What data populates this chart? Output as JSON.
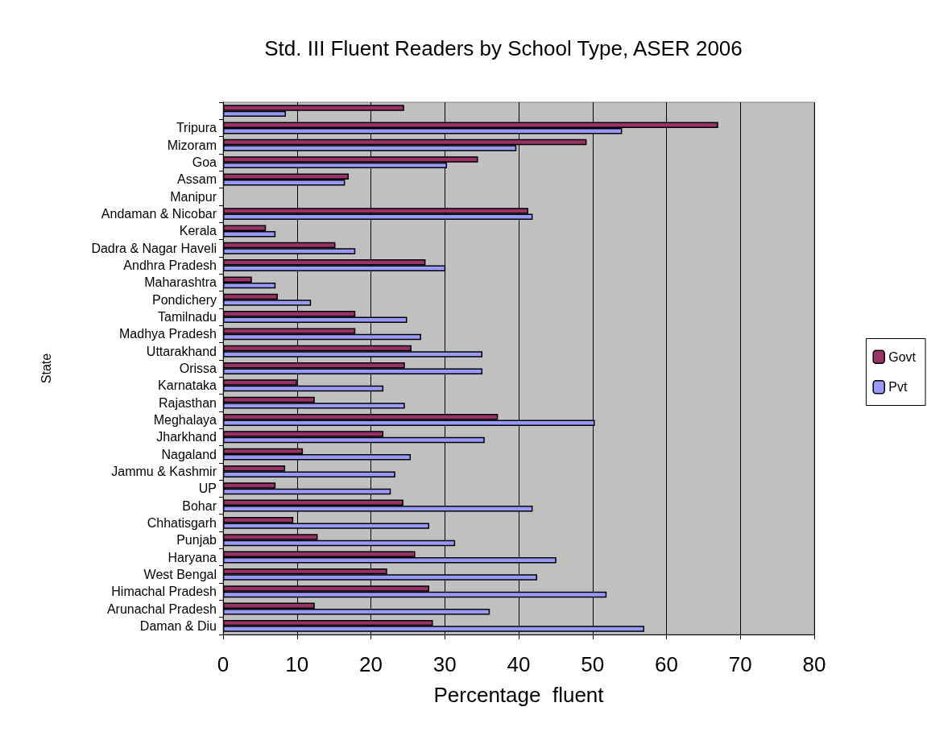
{
  "chart_data": {
    "type": "bar",
    "orientation": "horizontal",
    "title": "Std. III Fluent Readers by School Type, ASER 2006",
    "xlabel": "Percentage  fluent",
    "ylabel": "State",
    "categories": [
      null,
      "Tripura",
      "Mizoram",
      "Goa",
      "Assam",
      "Manipur",
      "Andaman & Nicobar",
      "Kerala",
      "Dadra & Nagar Haveli",
      "Andhra Pradesh",
      "Maharashtra",
      "Pondichery",
      "Tamilnadu",
      "Madhya Pradesh",
      "Uttarakhand",
      "Orissa",
      "Karnataka",
      "Rajasthan",
      "Meghalaya",
      "Jharkhand",
      "Nagaland",
      "Jammu & Kashmir",
      "UP",
      "Bohar",
      "Chhatisgarh",
      "Punjab",
      "Haryana",
      "West Bengal",
      "Himachal Pradesh",
      "Arunachal Pradesh",
      "Daman & Diu"
    ],
    "series": [
      {
        "name": "Govt",
        "color": "#993366",
        "values": [
          24.5,
          67,
          49.2,
          34.5,
          17,
          null,
          41.3,
          5.8,
          15.2,
          27.4,
          3.9,
          7.4,
          17.9,
          17.9,
          25.5,
          24.6,
          10,
          12.4,
          37.2,
          21.7,
          10.8,
          8.4,
          7.1,
          24.4,
          9.5,
          12.8,
          26,
          22.2,
          27.9,
          12.4,
          28.4
        ]
      },
      {
        "name": "Pvt",
        "color": "#9999ff",
        "values": [
          8.5,
          54,
          39.7,
          30.3,
          16.5,
          null,
          41.9,
          7.1,
          17.9,
          30.1,
          7.1,
          11.9,
          24.9,
          26.8,
          35.1,
          35.1,
          21.7,
          24.6,
          50.3,
          35.4,
          25.4,
          23.3,
          22.7,
          41.9,
          27.9,
          31.4,
          45.1,
          42.5,
          51.9,
          36.1,
          57
        ]
      }
    ],
    "xlim": [
      0,
      80
    ],
    "xticks": [
      0,
      10,
      20,
      30,
      40,
      50,
      60,
      70,
      80
    ],
    "grid": "x",
    "legend": "right"
  }
}
